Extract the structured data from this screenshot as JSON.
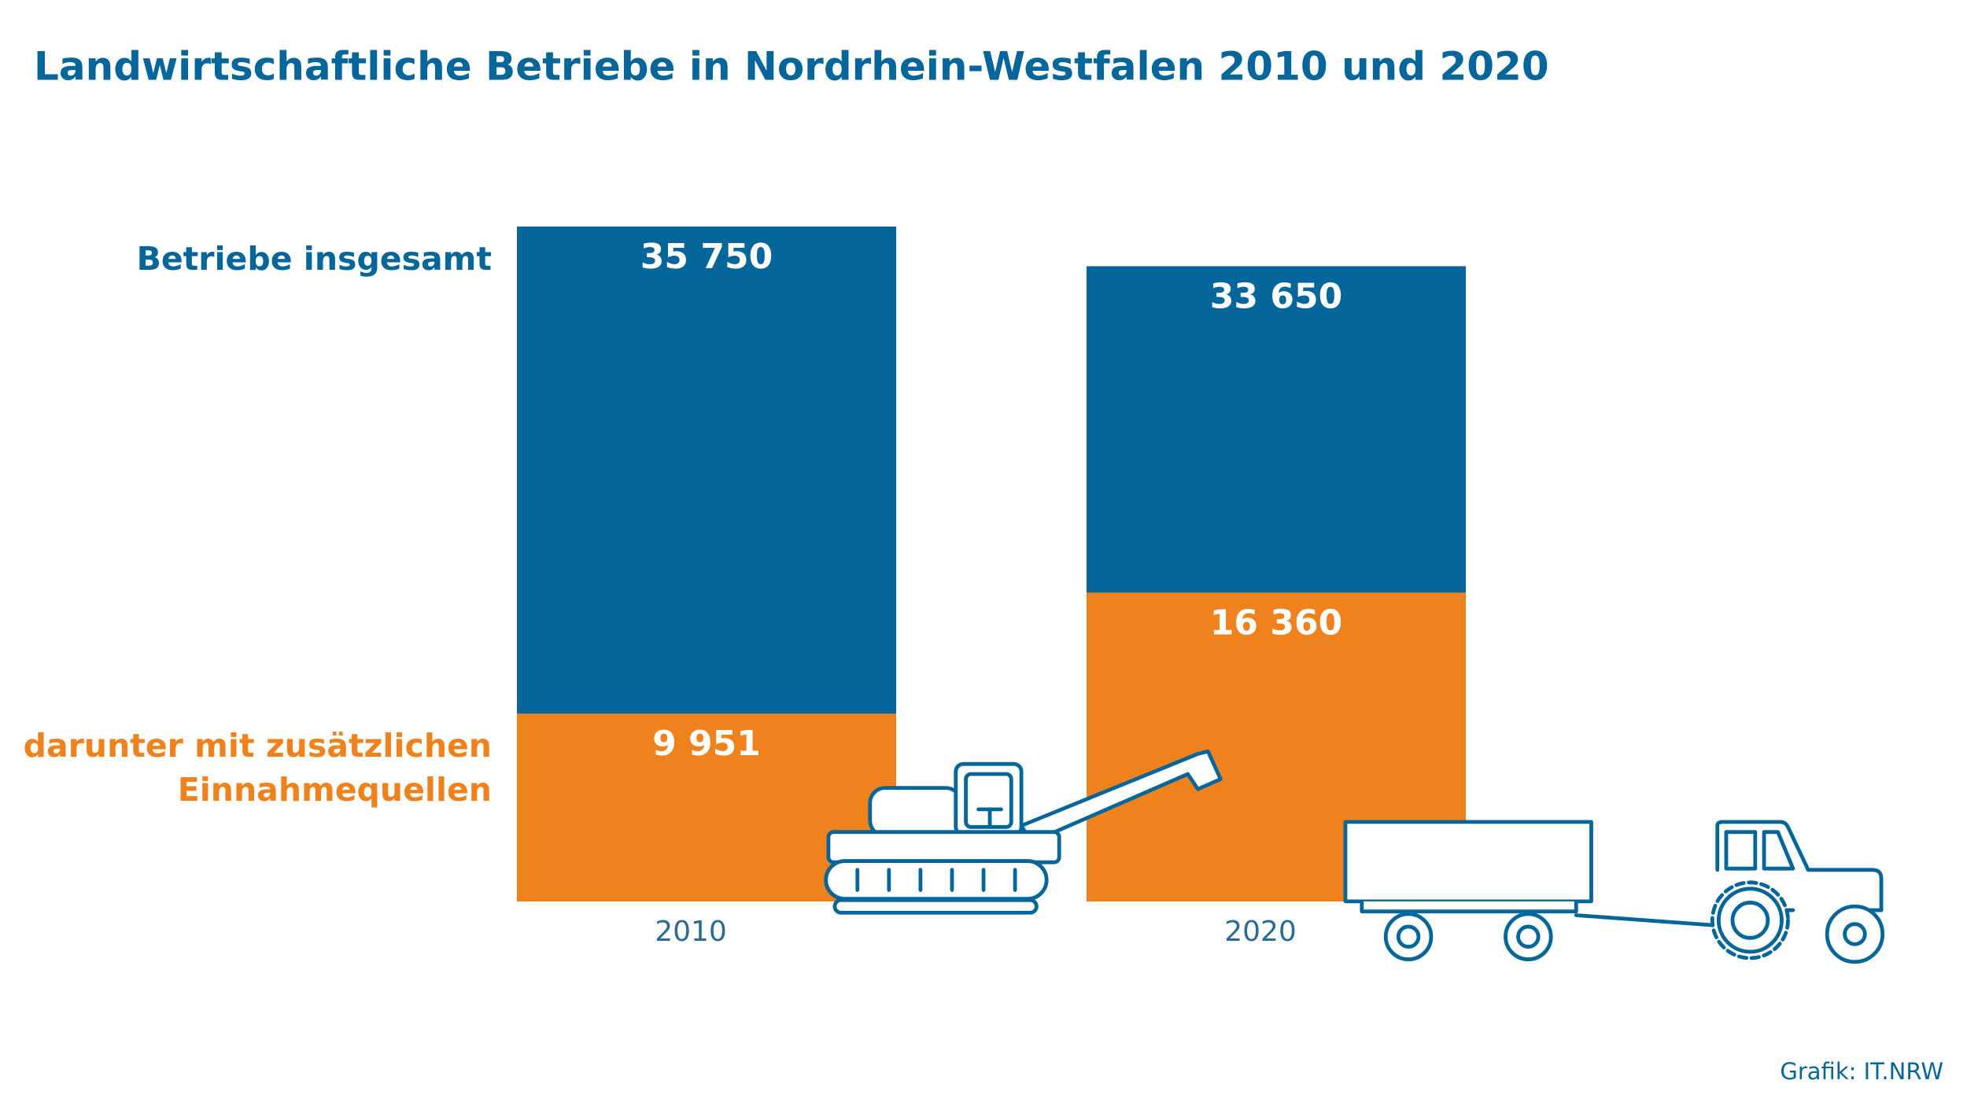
{
  "chart_data": {
    "type": "overlap-bar",
    "title": "Landwirtschaftliche Betriebe in Nordrhein-Westfalen 2010 und 2020",
    "categories": [
      "2010",
      "2020"
    ],
    "series": [
      {
        "name": "Betriebe insgesamt",
        "color": "#05669b",
        "values": [
          35750,
          33650
        ],
        "value_labels": [
          "35 750",
          "33 650"
        ]
      },
      {
        "name": "darunter mit zusätzlichen\nEinnahmequellen",
        "color": "#f0821e",
        "values": [
          9951,
          16360
        ],
        "value_labels": [
          "9 951",
          "16 360"
        ]
      }
    ],
    "source": "Grafik: IT.NRW"
  }
}
